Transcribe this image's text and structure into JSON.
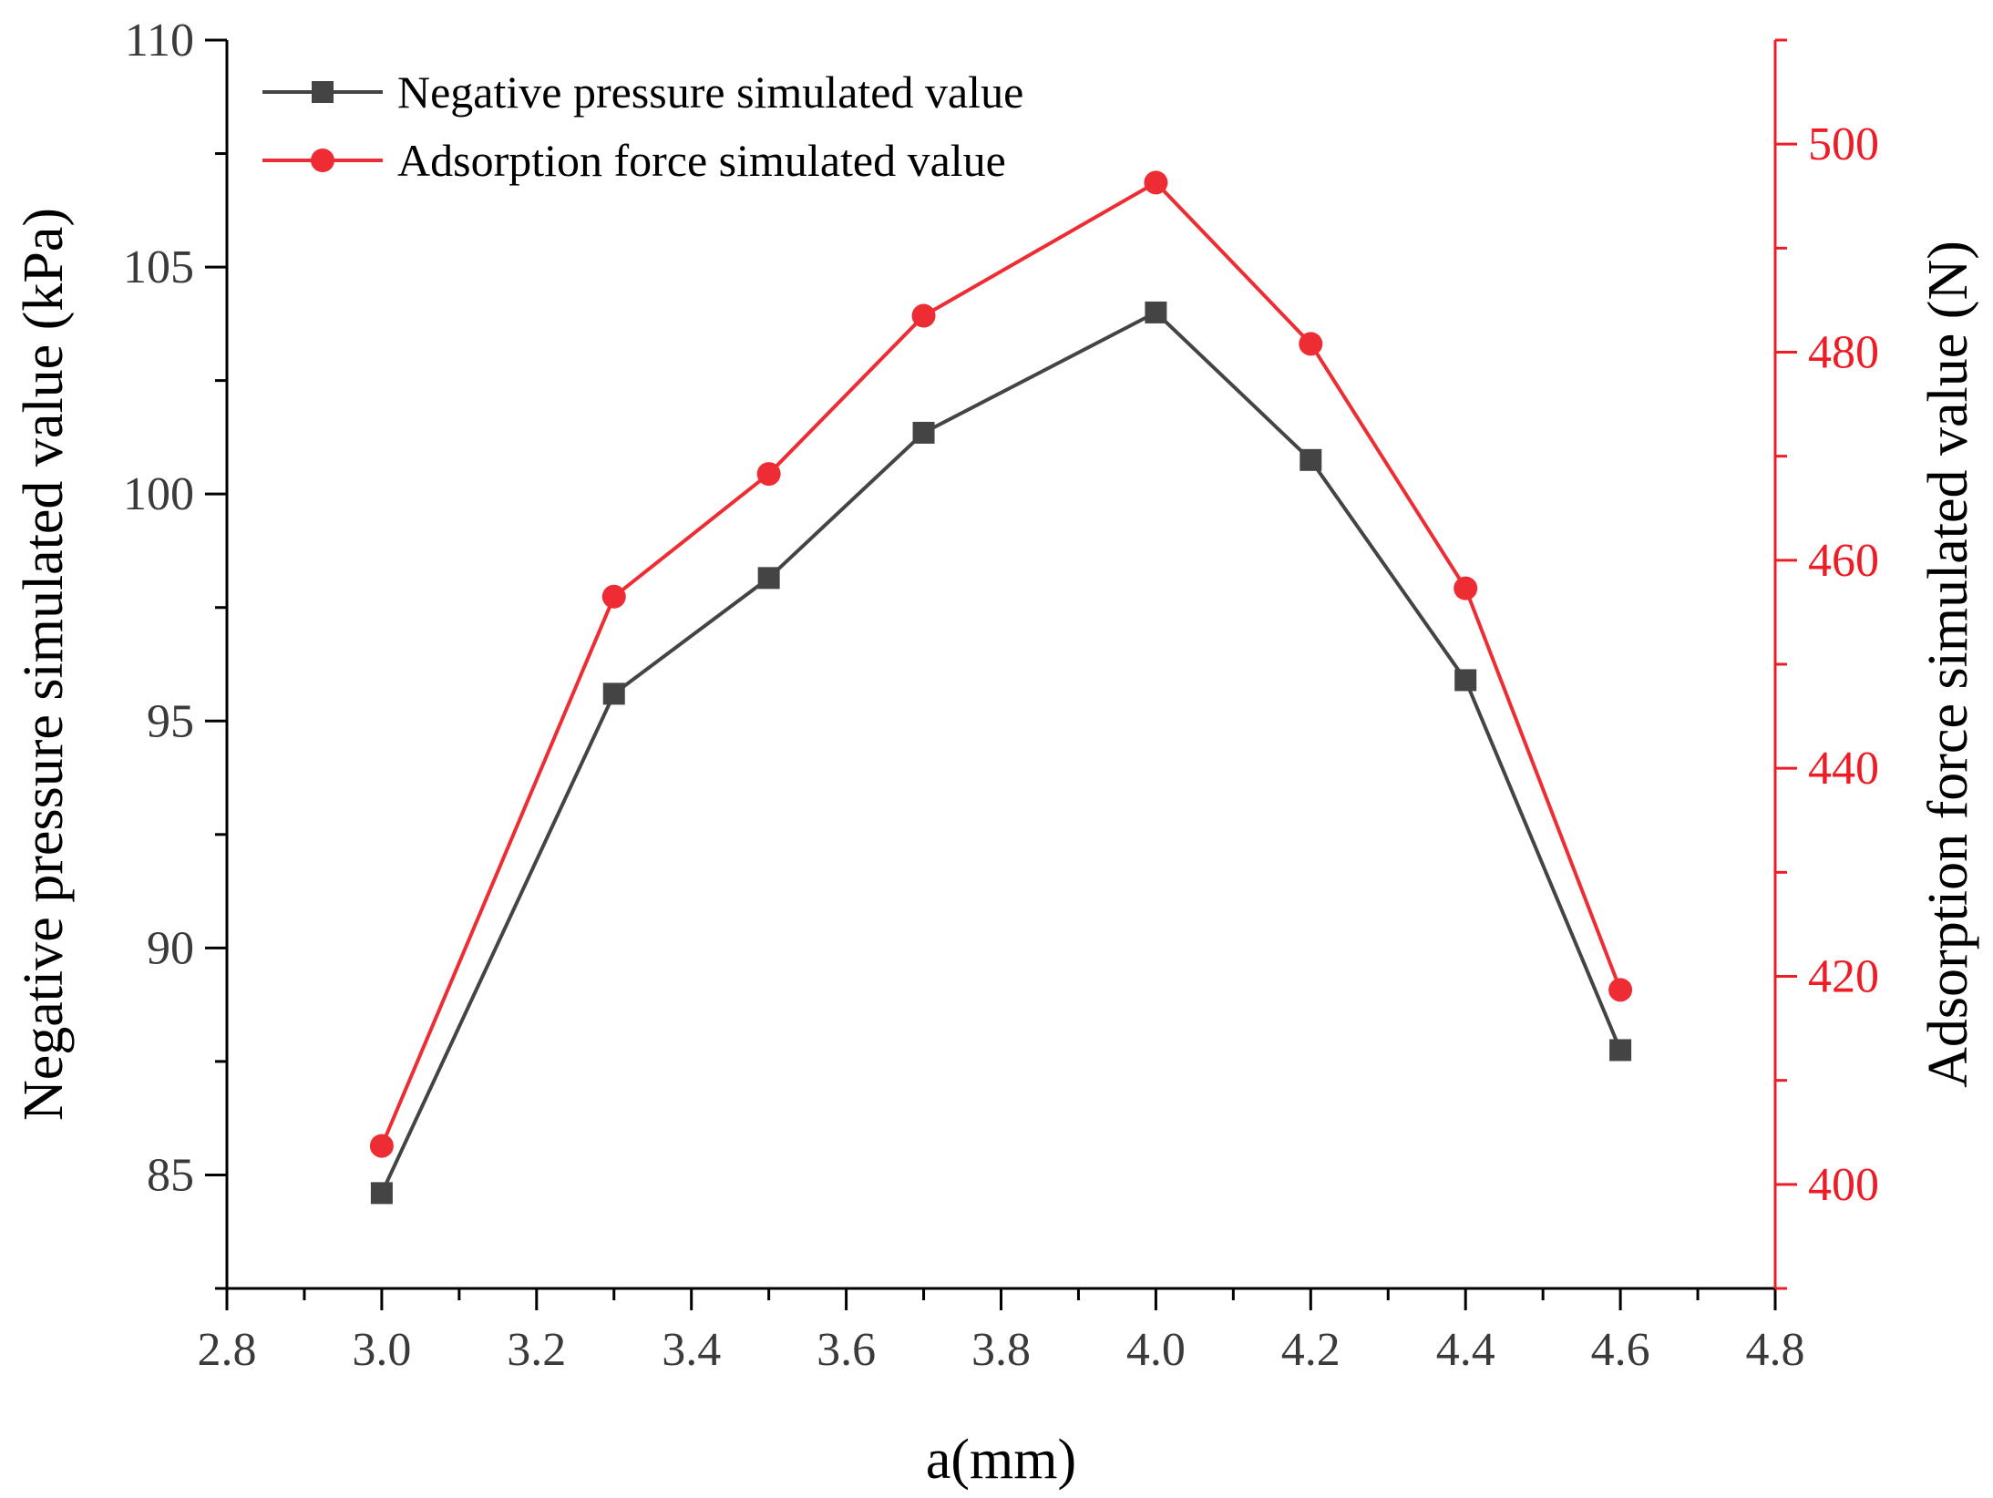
{
  "chart_data": {
    "type": "line",
    "title": "",
    "xlabel": "a(mm)",
    "ylabel": "Negative pressure simulated value (kPa)",
    "y2label": "Adsorption force simulated value (N)",
    "xlim": [
      2.8,
      4.8
    ],
    "ylim": [
      82.5,
      110
    ],
    "y2lim": [
      390,
      510
    ],
    "x_ticks": [
      "2.8",
      "3.0",
      "3.2",
      "3.4",
      "3.6",
      "3.8",
      "4.0",
      "4.2",
      "4.4",
      "4.6",
      "4.8"
    ],
    "y_ticks": [
      "85",
      "90",
      "95",
      "100",
      "105",
      "110"
    ],
    "y2_ticks": [
      "400",
      "420",
      "440",
      "460",
      "480",
      "500"
    ],
    "grid": false,
    "legend_position": "top-left",
    "x": [
      3.0,
      3.3,
      3.5,
      3.7,
      4.0,
      4.2,
      4.4,
      4.6
    ],
    "series": [
      {
        "name": "Negative pressure simulated value",
        "axis": "left",
        "marker": "square",
        "color": "#444444",
        "values": [
          84.6,
          95.6,
          98.15,
          101.35,
          104.0,
          100.75,
          95.9,
          87.75
        ]
      },
      {
        "name": "Adsorption force simulated value",
        "axis": "right",
        "marker": "circle",
        "color": "#ee2c33",
        "values": [
          403.7,
          456.5,
          468.3,
          483.5,
          496.3,
          480.8,
          457.3,
          418.7
        ]
      }
    ]
  }
}
